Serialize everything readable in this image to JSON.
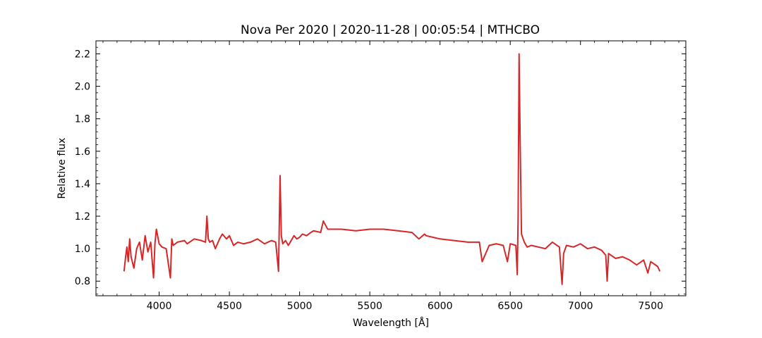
{
  "chart_data": {
    "type": "line",
    "title": "Nova Per 2020 | 2020-11-28 | 00:05:54 | MTHCBO",
    "xlabel": "Wavelength [Å]",
    "ylabel": "Relative flux",
    "xlim": [
      3550,
      7750
    ],
    "ylim": [
      0.71,
      2.28
    ],
    "x_ticks": [
      4000,
      4500,
      5000,
      5500,
      6000,
      6500,
      7000,
      7500
    ],
    "y_ticks": [
      0.8,
      1.0,
      1.2,
      1.4,
      1.6,
      1.8,
      2.0,
      2.2
    ],
    "x_tick_labels": [
      "4000",
      "4500",
      "5000",
      "5500",
      "6000",
      "6500",
      "7000",
      "7500"
    ],
    "y_tick_labels": [
      "0.8",
      "1.0",
      "1.2",
      "1.4",
      "1.6",
      "1.8",
      "2.0",
      "2.2"
    ],
    "grid": false,
    "series": [
      {
        "color": "#d62728",
        "x": [
          3750,
          3760,
          3770,
          3780,
          3790,
          3800,
          3820,
          3840,
          3860,
          3880,
          3900,
          3920,
          3940,
          3960,
          3970,
          3980,
          4000,
          4020,
          4050,
          4080,
          4090,
          4100,
          4130,
          4180,
          4200,
          4250,
          4300,
          4330,
          4340,
          4350,
          4360,
          4380,
          4400,
          4430,
          4450,
          4480,
          4500,
          4530,
          4560,
          4600,
          4650,
          4700,
          4750,
          4800,
          4830,
          4850,
          4861,
          4870,
          4880,
          4900,
          4920,
          4960,
          4980,
          5000,
          5020,
          5050,
          5080,
          5100,
          5150,
          5169,
          5200,
          5300,
          5400,
          5500,
          5600,
          5700,
          5800,
          5850,
          5890,
          5900,
          5950,
          6000,
          6100,
          6200,
          6280,
          6300,
          6350,
          6400,
          6450,
          6480,
          6500,
          6540,
          6550,
          6556,
          6563,
          6570,
          6580,
          6600,
          6620,
          6650,
          6700,
          6750,
          6800,
          6850,
          6869,
          6880,
          6900,
          6950,
          7000,
          7050,
          7100,
          7150,
          7180,
          7190,
          7200,
          7250,
          7300,
          7350,
          7400,
          7450,
          7480,
          7500,
          7550,
          7565
        ],
        "y": [
          0.86,
          0.94,
          1.01,
          0.92,
          1.06,
          0.95,
          0.88,
          1.0,
          1.04,
          0.93,
          1.08,
          0.98,
          1.04,
          0.82,
          1.03,
          1.12,
          1.03,
          1.01,
          1.0,
          0.82,
          1.06,
          1.02,
          1.04,
          1.05,
          1.03,
          1.06,
          1.05,
          1.04,
          1.2,
          1.06,
          1.04,
          1.05,
          1.0,
          1.06,
          1.09,
          1.06,
          1.08,
          1.02,
          1.04,
          1.03,
          1.04,
          1.06,
          1.03,
          1.05,
          1.04,
          0.86,
          1.45,
          1.08,
          1.03,
          1.05,
          1.02,
          1.08,
          1.06,
          1.07,
          1.09,
          1.08,
          1.1,
          1.11,
          1.1,
          1.17,
          1.12,
          1.12,
          1.11,
          1.12,
          1.12,
          1.11,
          1.1,
          1.06,
          1.09,
          1.08,
          1.07,
          1.06,
          1.05,
          1.04,
          1.04,
          0.92,
          1.02,
          1.03,
          1.02,
          0.92,
          1.03,
          1.02,
          0.84,
          1.2,
          2.2,
          1.7,
          1.09,
          1.04,
          1.01,
          1.02,
          1.01,
          1.0,
          1.04,
          1.01,
          0.78,
          0.97,
          1.02,
          1.01,
          1.03,
          1.0,
          1.01,
          0.99,
          0.96,
          0.8,
          0.97,
          0.94,
          0.95,
          0.93,
          0.9,
          0.93,
          0.85,
          0.92,
          0.89,
          0.86
        ]
      }
    ]
  }
}
